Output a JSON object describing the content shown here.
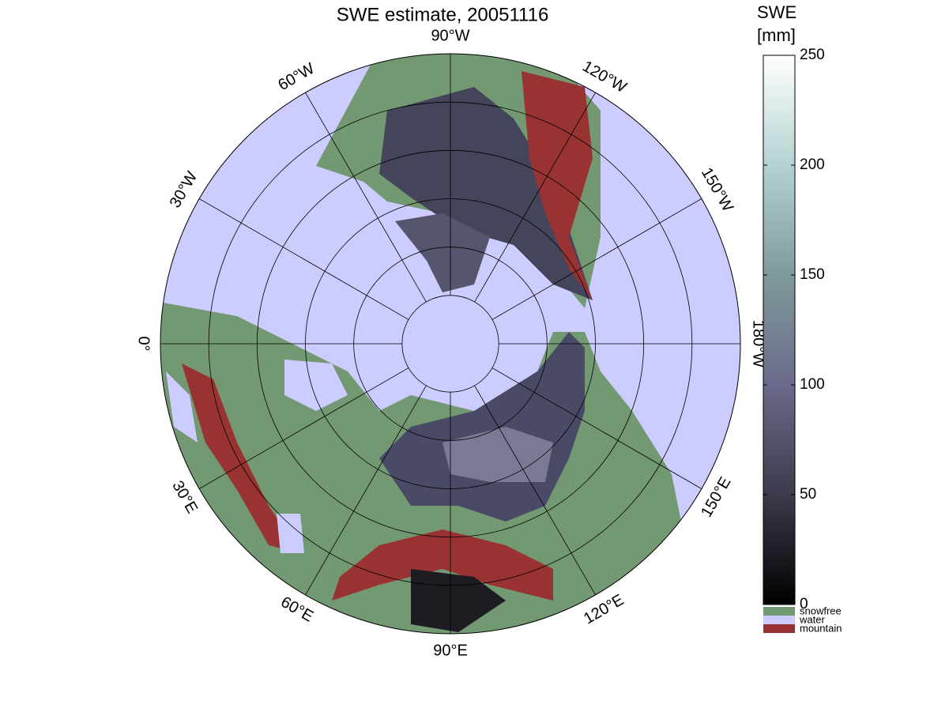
{
  "title": "SWE estimate, 20051116",
  "map": {
    "meridians": [
      {
        "value": -90,
        "label": "90°W"
      },
      {
        "value": -120,
        "label": "120°W"
      },
      {
        "value": -150,
        "label": "150°W"
      },
      {
        "value": -180,
        "label": "180°W"
      },
      {
        "value": 150,
        "label": "150°E"
      },
      {
        "value": 120,
        "label": "120°E"
      },
      {
        "value": 90,
        "label": "90°E"
      },
      {
        "value": 60,
        "label": "60°E"
      },
      {
        "value": 30,
        "label": "30°E"
      },
      {
        "value": 0,
        "label": "0°"
      },
      {
        "value": -30,
        "label": "30°W"
      },
      {
        "value": -60,
        "label": "60°W"
      }
    ],
    "parallels": [
      40,
      50,
      60,
      70,
      80
    ],
    "lat_limit": 30
  },
  "colorbar": {
    "label_lines": [
      "SWE",
      "[mm]"
    ],
    "clim": [
      0,
      250
    ],
    "ticks": [
      0,
      50,
      100,
      150,
      200,
      250
    ],
    "colors": [
      "#000000",
      "#3b3b4c",
      "#6a6a8a",
      "#7f9a9a",
      "#b4d2d2",
      "#ffffff"
    ],
    "categories": [
      {
        "name": "snowfree",
        "color": "#739973"
      },
      {
        "name": "water",
        "color": "#ccccff"
      },
      {
        "name": "mountain",
        "color": "#993333"
      }
    ]
  }
}
